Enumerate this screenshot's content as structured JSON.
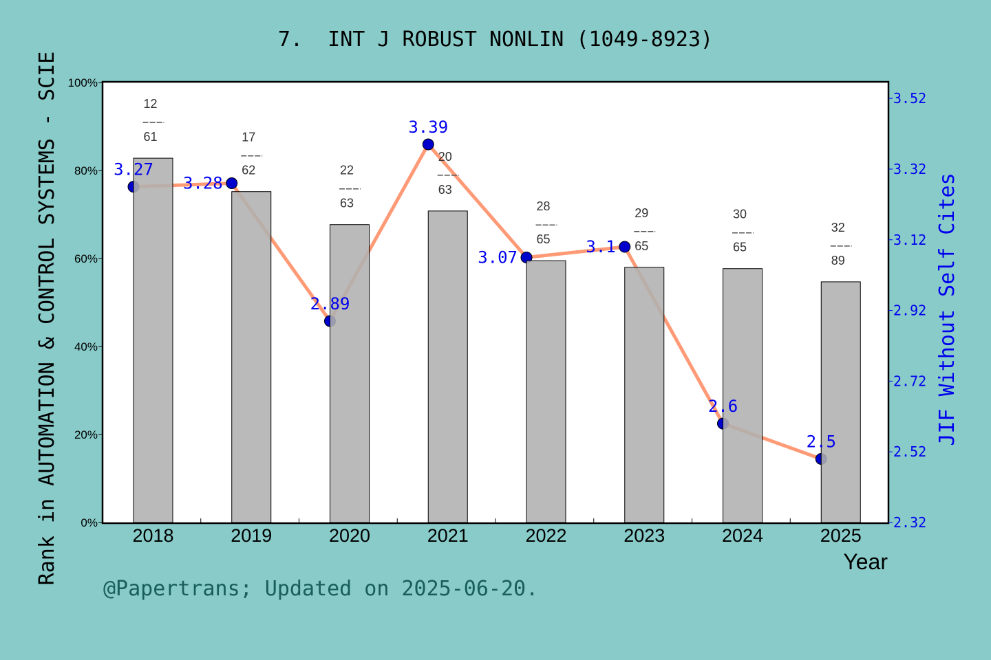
{
  "chart_data": {
    "type": "bar+line",
    "title": "7.  INT J ROBUST NONLIN (1049-8923)",
    "xlabel": "Year",
    "ylabel_left": "Rank in AUTOMATION & CONTROL SYSTEMS - SCIE",
    "ylabel_right": "JIF Without Self Cites",
    "categories": [
      "2018",
      "2019",
      "2020",
      "2021",
      "2022",
      "2023",
      "2024",
      "2025"
    ],
    "left_axis": {
      "ylim": [
        0,
        100
      ],
      "ticks": [
        "0%",
        "20%",
        "40%",
        "60%",
        "80%",
        "100%"
      ]
    },
    "right_axis": {
      "ylim": [
        2.32,
        3.565
      ],
      "ticks": [
        "2.32",
        "2.52",
        "2.72",
        "2.92",
        "3.12",
        "3.32",
        "3.52"
      ]
    },
    "bars": {
      "values": [
        82.8,
        75.2,
        67.7,
        70.8,
        59.5,
        58.0,
        57.7,
        54.7
      ],
      "labels_top": [
        "12",
        "17",
        "22",
        "20",
        "28",
        "29",
        "30",
        "32"
      ],
      "labels_bottom": [
        "61",
        "62",
        "63",
        "63",
        "65",
        "65",
        "65",
        "89"
      ],
      "color": "#b0b0b0"
    },
    "line": {
      "values": [
        3.27,
        3.28,
        2.89,
        3.39,
        3.07,
        3.1,
        2.6,
        2.5
      ],
      "labels": [
        "3.27",
        "3.28",
        "2.89",
        "3.39",
        "3.07",
        "3.1",
        "2.6",
        "2.5"
      ],
      "line_color": "#ff9a76",
      "marker_color": "#0000cc"
    }
  },
  "footer": "@Papertrans; Updated on 2025-06-20."
}
